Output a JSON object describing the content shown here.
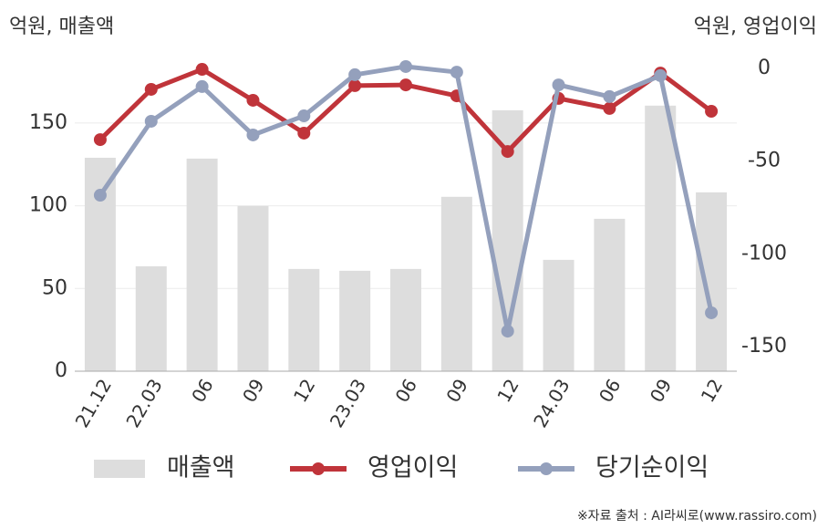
{
  "chart_data": {
    "type": "bar",
    "y_label": "억원, 매출액",
    "y2_label": "억원, 영업이익",
    "source": "※자료 출처 : AI라씨로(www.rassiro.com)",
    "categories": [
      "21.12",
      "22.03",
      "06",
      "09",
      "12",
      "23.03",
      "06",
      "09",
      "12",
      "24.03",
      "06",
      "09",
      "12"
    ],
    "series": [
      {
        "name": "매출액",
        "type": "bar",
        "color": "#dddddd",
        "values": [
          129,
          63.4,
          128.5,
          99.8,
          61.8,
          60.7,
          61.8,
          105.4,
          157.7,
          67.3,
          92.1,
          160.5,
          108.1
        ]
      },
      {
        "name": "영업이익",
        "type": "line",
        "axis": "y2",
        "color": "#c0343a",
        "values": [
          -38.4,
          -11.3,
          -0.5,
          -17.2,
          -34.9,
          -9.3,
          -8.9,
          -14.8,
          -44.8,
          -16.2,
          -21.6,
          -2.5,
          -23.1
        ]
      },
      {
        "name": "당기순이익",
        "type": "line",
        "axis": "y2",
        "color": "#94a0bc",
        "values": [
          -68.4,
          -28.5,
          -9.8,
          -35.9,
          -25.6,
          -3.4,
          1.0,
          -2.0,
          -141.7,
          -8.9,
          -15.2,
          -3.9,
          -131.8
        ]
      }
    ],
    "ylim": [
      0,
      183
    ],
    "yticks": [
      0,
      50,
      100,
      150
    ],
    "y2lim": [
      -163.3,
      0
    ],
    "y2ticks": [
      0,
      -50,
      -100,
      -150
    ],
    "grid": true
  }
}
